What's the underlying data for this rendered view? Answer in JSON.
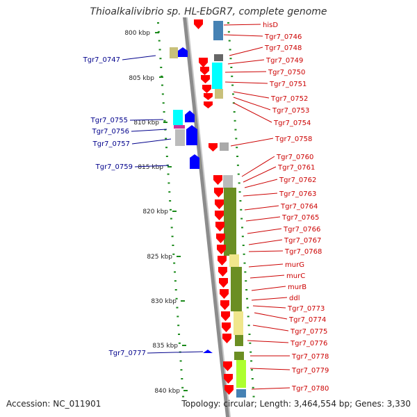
{
  "title": "Thioalkalivibrio sp. HL-EbGR7, complete genome",
  "footer": {
    "accession": "Accession: NC_011901",
    "topology": "Topology: circular; Length: 3,464,554 bp; Genes: 3,330"
  },
  "kbp_labels": [
    "800 kbp",
    "805 kbp",
    "810 kbp",
    "815 kbp",
    "820 kbp",
    "825 kbp",
    "830 kbp",
    "835 kbp",
    "840 kbp"
  ],
  "left_genes": [
    "Tgr7_0747",
    "Tgr7_0755",
    "Tgr7_0756",
    "Tgr7_0757",
    "Tgr7_0759",
    "Tgr7_0777"
  ],
  "right_genes": [
    "hisD",
    "Tgr7_0746",
    "Tgr7_0748",
    "Tgr7_0749",
    "Tgr7_0750",
    "Tgr7_0751",
    "Tgr7_0752",
    "Tgr7_0753",
    "Tgr7_0754",
    "Tgr7_0758",
    "Tgr7_0760",
    "Tgr7_0761",
    "Tgr7_0762",
    "Tgr7_0763",
    "Tgr7_0764",
    "Tgr7_0765",
    "Tgr7_0766",
    "Tgr7_0767",
    "Tgr7_0768",
    "murG",
    "murC",
    "murB",
    "ddl",
    "Tgr7_0773",
    "Tgr7_0774",
    "Tgr7_0775",
    "Tgr7_0776",
    "Tgr7_0778",
    "Tgr7_0779",
    "Tgr7_0780"
  ],
  "colors": {
    "forward_label": "#cc0000",
    "reverse_label": "#00008b",
    "tick": "#1a8a1a",
    "backbone": "#8c8c8c",
    "forward_gene": "#ff0000",
    "reverse_gene": "#0000ff",
    "cog_olive": "#6b8e23",
    "cog_cyan": "#00ffff",
    "cog_khaki": "#f0e68c",
    "cog_steel": "#4682b4",
    "cog_lime": "#adff2f"
  }
}
